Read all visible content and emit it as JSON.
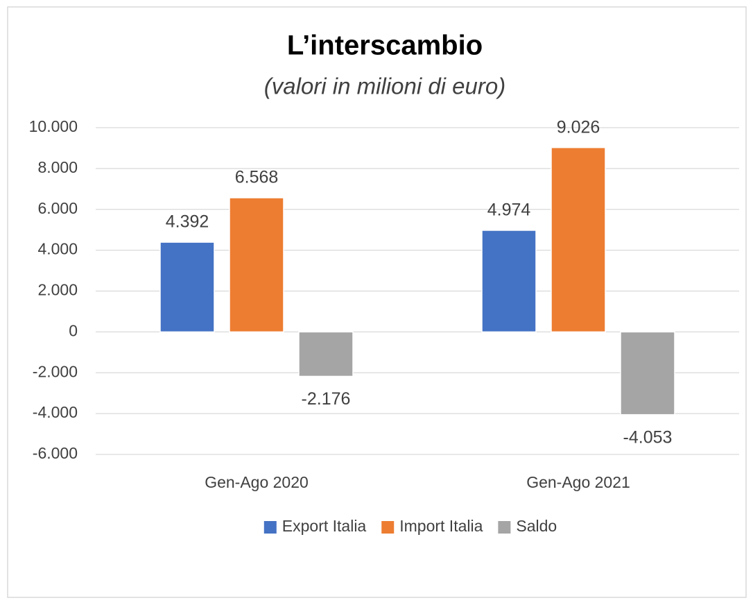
{
  "chart_data": {
    "type": "bar",
    "title": "L’interscambio",
    "subtitle": "(valori in milioni di euro)",
    "categories": [
      "Gen-Ago 2020",
      "Gen-Ago 2021"
    ],
    "series": [
      {
        "name": "Export Italia",
        "color": "#4472c4",
        "values": [
          4392,
          4974
        ],
        "value_labels": [
          "4.392",
          "4.974"
        ]
      },
      {
        "name": "Import Italia",
        "color": "#ed7d31",
        "values": [
          6568,
          9026
        ],
        "value_labels": [
          "6.568",
          "9.026"
        ]
      },
      {
        "name": "Saldo",
        "color": "#a5a5a5",
        "values": [
          -2176,
          -4053
        ],
        "value_labels": [
          "-2.176",
          "-4.053"
        ]
      }
    ],
    "ylim": [
      -6000,
      10000
    ],
    "yticks": [
      {
        "value": -6000,
        "label": "-6.000"
      },
      {
        "value": -4000,
        "label": "-4.000"
      },
      {
        "value": -2000,
        "label": "-2.000"
      },
      0,
      {
        "value": 2000,
        "label": "2.000"
      },
      {
        "value": 4000,
        "label": "4.000"
      },
      {
        "value": 6000,
        "label": "6.000"
      },
      {
        "value": 8000,
        "label": "8.000"
      },
      {
        "value": 10000,
        "label": "10.000"
      }
    ],
    "grid": true,
    "legend": "bottom"
  }
}
